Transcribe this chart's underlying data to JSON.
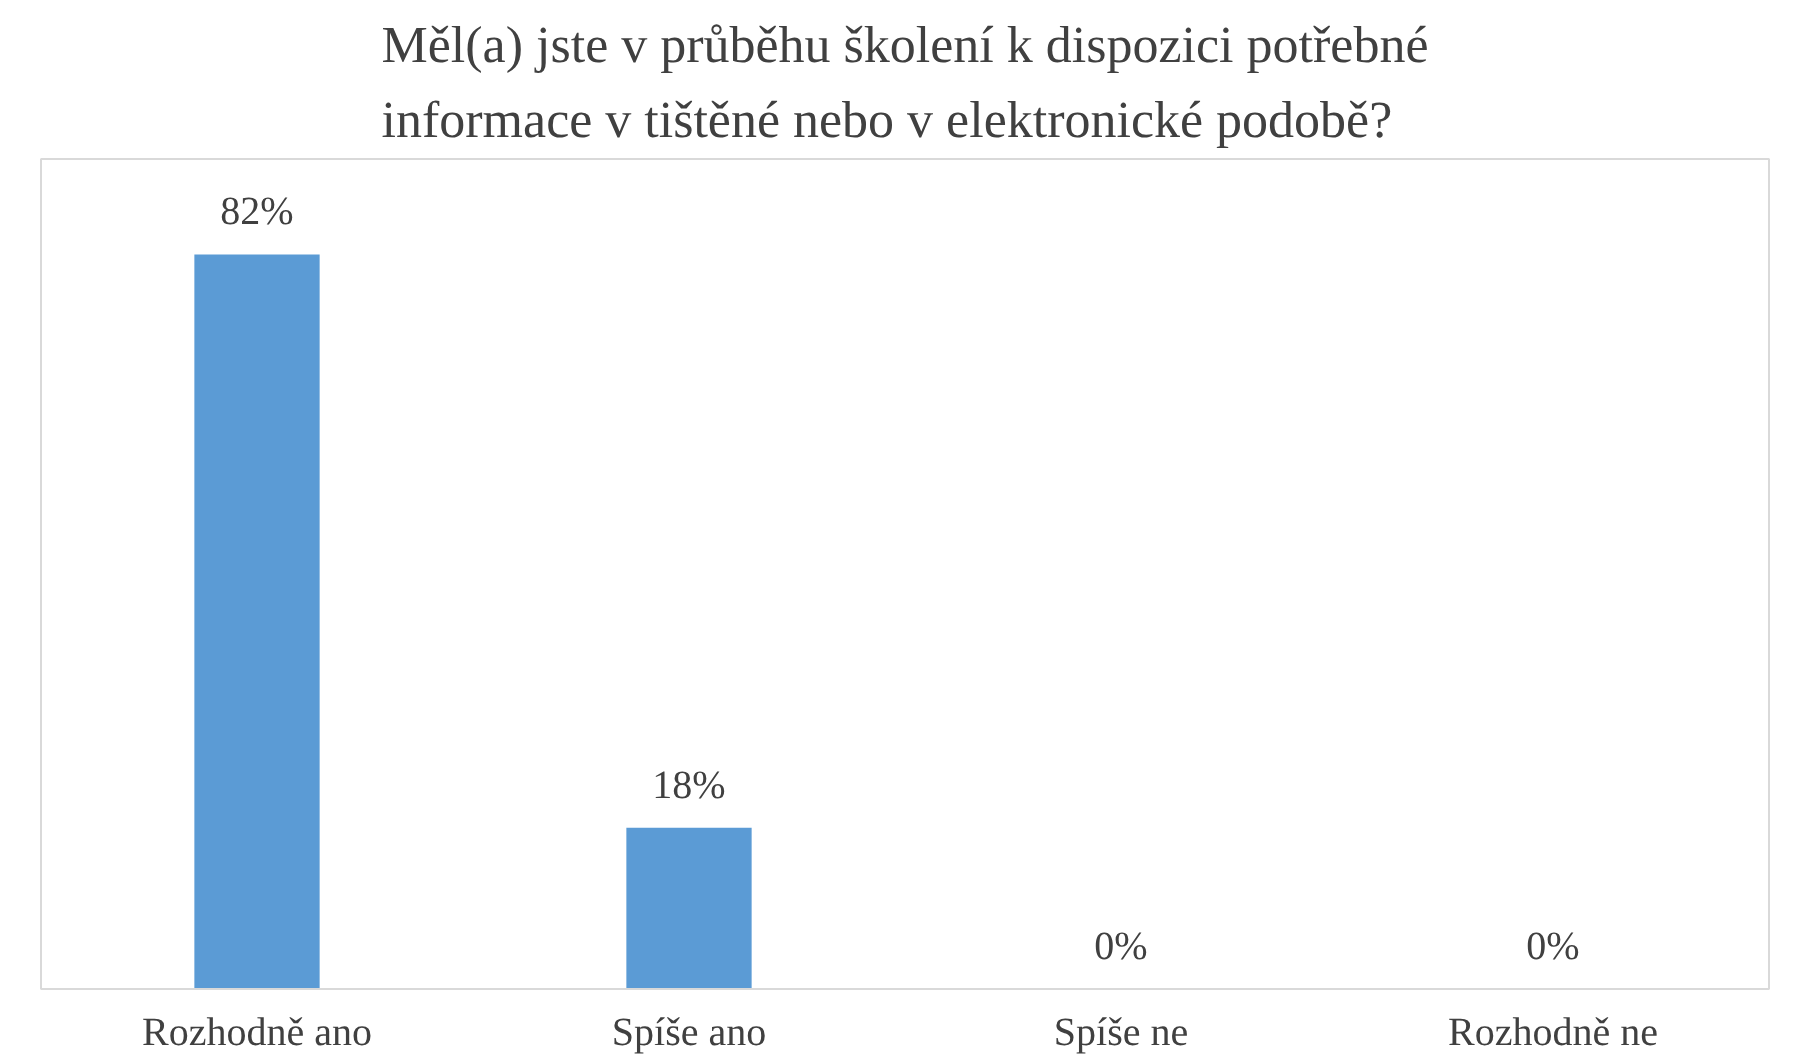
{
  "chart_data": {
    "type": "bar",
    "title": "Měl(a) jste v průběhu školení k dispozici potřebné informace v tištěné nebo v elektronické podobě?",
    "categories": [
      "Rozhodně ano",
      "Spíše ano",
      "Spíše ne",
      "Rozhodně ne"
    ],
    "values": [
      82,
      18,
      0,
      0
    ],
    "value_labels": [
      "82%",
      "18%",
      "0%",
      "0%"
    ],
    "color": "#5b9bd5",
    "grid": false
  }
}
